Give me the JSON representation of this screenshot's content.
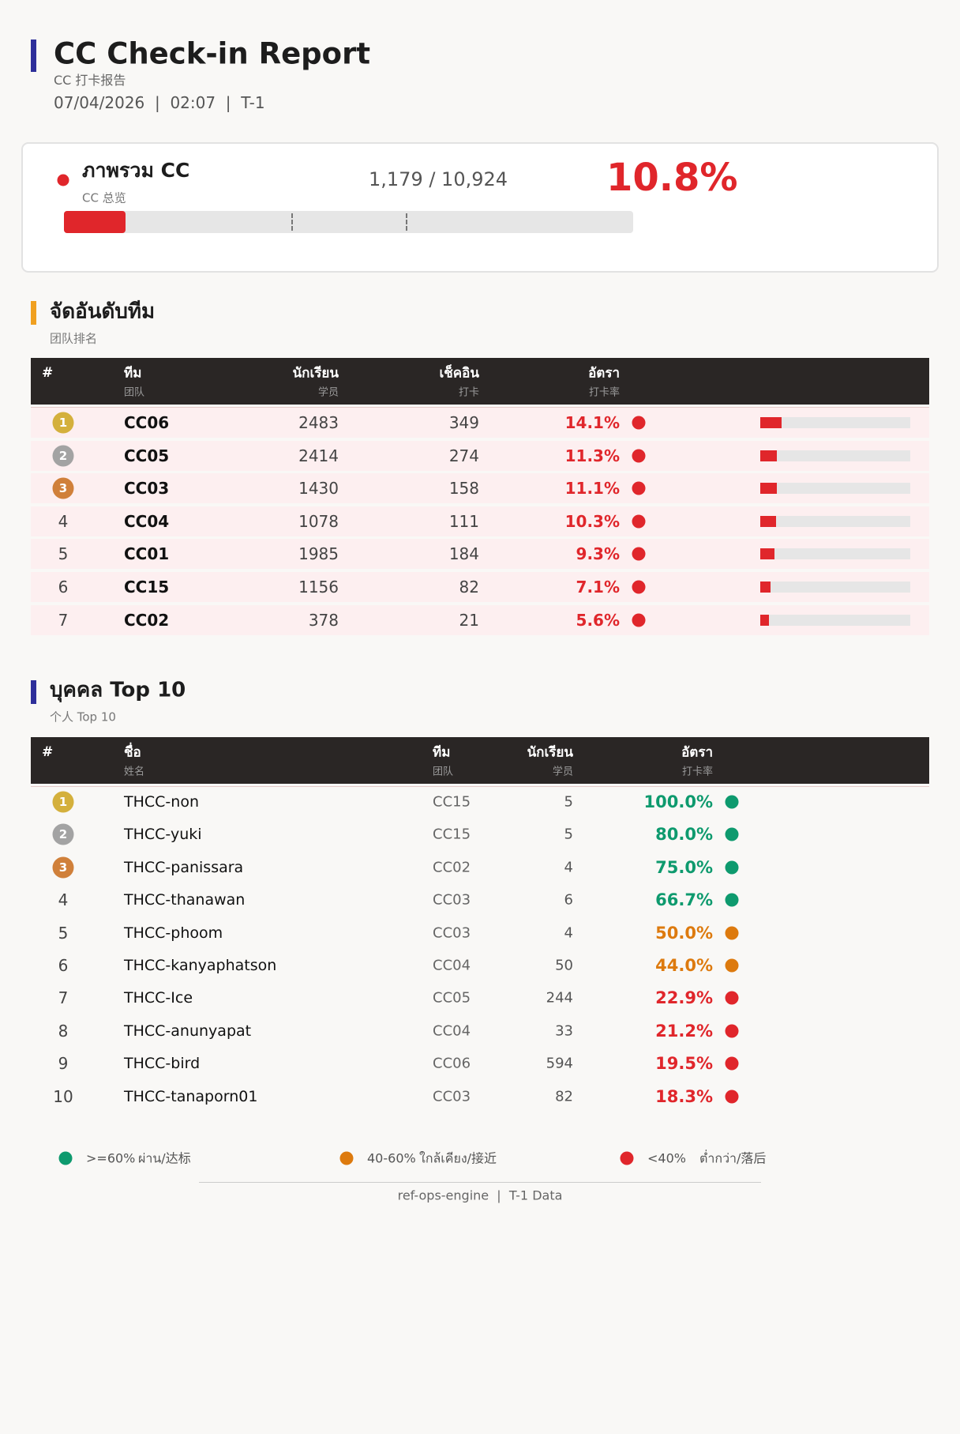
{
  "header": {
    "title": "CC Check-in Report",
    "subtitle": "CC 打卡报告",
    "meta": "07/04/2026  |  02:07  |  T-1"
  },
  "overview": {
    "title": "ภาพรวม CC",
    "subtitle": "CC 总览",
    "ratio": "1,179 / 10,924",
    "rate": {
      "value": 10.8,
      "label": "10.8%"
    },
    "color": "#e0262b"
  },
  "team_ranking": {
    "title": "จัดอันดับทีม",
    "subtitle": "团队排名",
    "columns": [
      {
        "th": "#"
      },
      {
        "th": "ทีม",
        "zh": "团队"
      },
      {
        "th": "นักเรียน",
        "zh": "学员"
      },
      {
        "th": "เช็คอิน",
        "zh": "打卡"
      },
      {
        "th": "อัตรา",
        "zh": "打卡率"
      }
    ],
    "rows": [
      {
        "rank": 1,
        "team": "CC06",
        "students": 2483,
        "checkins": 349,
        "rate": {
          "value": 14.1,
          "label": "14.1%"
        },
        "color": "#e0262b"
      },
      {
        "rank": 2,
        "team": "CC05",
        "students": 2414,
        "checkins": 274,
        "rate": {
          "value": 11.3,
          "label": "11.3%"
        },
        "color": "#e0262b"
      },
      {
        "rank": 3,
        "team": "CC03",
        "students": 1430,
        "checkins": 158,
        "rate": {
          "value": 11.1,
          "label": "11.1%"
        },
        "color": "#e0262b"
      },
      {
        "rank": 4,
        "team": "CC04",
        "students": 1078,
        "checkins": 111,
        "rate": {
          "value": 10.3,
          "label": "10.3%"
        },
        "color": "#e0262b"
      },
      {
        "rank": 5,
        "team": "CC01",
        "students": 1985,
        "checkins": 184,
        "rate": {
          "value": 9.3,
          "label": "9.3%"
        },
        "color": "#e0262b"
      },
      {
        "rank": 6,
        "team": "CC15",
        "students": 1156,
        "checkins": 82,
        "rate": {
          "value": 7.1,
          "label": "7.1%"
        },
        "color": "#e0262b"
      },
      {
        "rank": 7,
        "team": "CC02",
        "students": 378,
        "checkins": 21,
        "rate": {
          "value": 5.6,
          "label": "5.6%"
        },
        "color": "#e0262b"
      }
    ]
  },
  "individual_top10": {
    "title": "บุคคล Top 10",
    "subtitle": "个人 Top 10",
    "columns": [
      {
        "th": "#"
      },
      {
        "th": "ชื่อ",
        "zh": "姓名"
      },
      {
        "th": "ทีม",
        "zh": "团队"
      },
      {
        "th": "นักเรียน",
        "zh": "学员"
      },
      {
        "th": "อัตรา",
        "zh": "打卡率"
      }
    ],
    "rows": [
      {
        "rank": 1,
        "name": "THCC-non",
        "team": "CC15",
        "students": 5,
        "rate": {
          "value": 100.0,
          "label": "100.0%"
        },
        "color": "#0e9a6e"
      },
      {
        "rank": 2,
        "name": "THCC-yuki",
        "team": "CC15",
        "students": 5,
        "rate": {
          "value": 80.0,
          "label": "80.0%"
        },
        "color": "#0e9a6e"
      },
      {
        "rank": 3,
        "name": "THCC-panissara",
        "team": "CC02",
        "students": 4,
        "rate": {
          "value": 75.0,
          "label": "75.0%"
        },
        "color": "#0e9a6e"
      },
      {
        "rank": 4,
        "name": "THCC-thanawan",
        "team": "CC03",
        "students": 6,
        "rate": {
          "value": 66.7,
          "label": "66.7%"
        },
        "color": "#0e9a6e"
      },
      {
        "rank": 5,
        "name": "THCC-phoom",
        "team": "CC03",
        "students": 4,
        "rate": {
          "value": 50.0,
          "label": "50.0%"
        },
        "color": "#dd7a0e"
      },
      {
        "rank": 6,
        "name": "THCC-kanyaphatson",
        "team": "CC04",
        "students": 50,
        "rate": {
          "value": 44.0,
          "label": "44.0%"
        },
        "color": "#dd7a0e"
      },
      {
        "rank": 7,
        "name": "THCC-Ice",
        "team": "CC05",
        "students": 244,
        "rate": {
          "value": 22.9,
          "label": "22.9%"
        },
        "color": "#e0262b"
      },
      {
        "rank": 8,
        "name": "THCC-anunyapat",
        "team": "CC04",
        "students": 33,
        "rate": {
          "value": 21.2,
          "label": "21.2%"
        },
        "color": "#e0262b"
      },
      {
        "rank": 9,
        "name": "THCC-bird",
        "team": "CC06",
        "students": 594,
        "rate": {
          "value": 19.5,
          "label": "19.5%"
        },
        "color": "#e0262b"
      },
      {
        "rank": 10,
        "name": "THCC-tanaporn01",
        "team": "CC03",
        "students": 82,
        "rate": {
          "value": 18.3,
          "label": "18.3%"
        },
        "color": "#e0262b"
      }
    ]
  },
  "legend": [
    {
      "color": "#0e9a6e",
      "range": ">=60%",
      "label": "ผ่าน/达标"
    },
    {
      "color": "#dd7a0e",
      "range": "40-60%",
      "label": "ใกล้เคียง/接近"
    },
    {
      "color": "#e0262b",
      "range": "<40%",
      "label": "ต่ำกว่า/落后"
    }
  ],
  "footer": "ref-ops-engine  |  T-1 Data"
}
